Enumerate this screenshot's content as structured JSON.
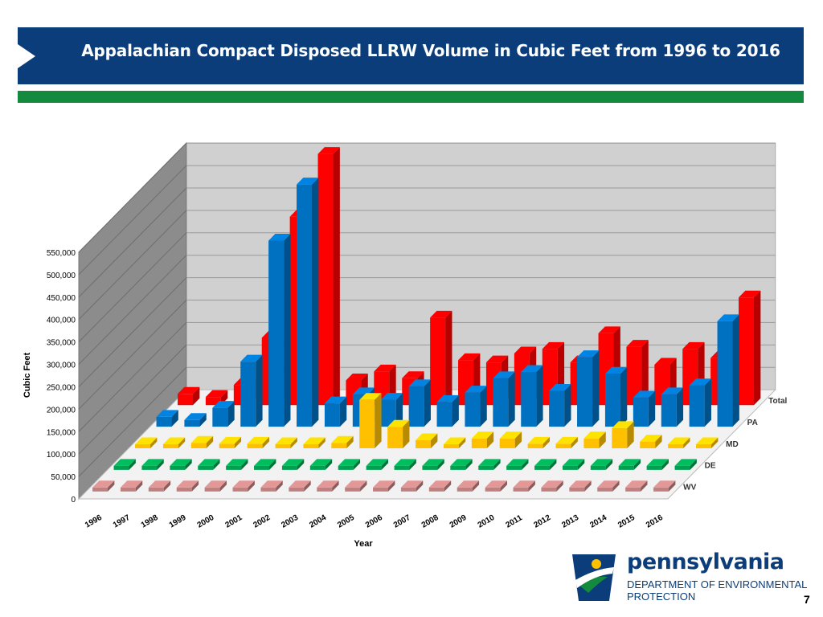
{
  "slide": {
    "title": "Appalachian Compact Disposed LLRW Volume in Cubic Feet from 1996 to 2016",
    "page_number": "7"
  },
  "logo": {
    "wordmark": "pennsylvania",
    "department_line1": "DEPARTMENT OF ENVIRONMENTAL",
    "department_line2": "PROTECTION"
  },
  "colors": {
    "header": "#0b3d7a",
    "green_bar": "#138a3e",
    "Total": "#ff0000",
    "PA": "#0070c0",
    "MD": "#ffc000",
    "DE": "#00a050",
    "WV": "#c08080"
  },
  "chart_data": {
    "type": "bar",
    "subtype": "3d-column",
    "title": "",
    "xlabel": "Year",
    "ylabel": "Cubic Feet",
    "ylim": [
      0,
      550000
    ],
    "yticks": [
      "0",
      "50,000",
      "100,000",
      "150,000",
      "200,000",
      "250,000",
      "300,000",
      "350,000",
      "400,000",
      "450,000",
      "500,000",
      "550,000"
    ],
    "categories": [
      "1996",
      "1997",
      "1998",
      "1999",
      "2000",
      "2001",
      "2002",
      "2003",
      "2004",
      "2005",
      "2006",
      "2007",
      "2008",
      "2009",
      "2010",
      "2011",
      "2012",
      "2013",
      "2014",
      "2015",
      "2016"
    ],
    "grid": true,
    "series": [
      {
        "name": "Total",
        "values": [
          25000,
          18000,
          45000,
          150000,
          420000,
          560000,
          55000,
          75000,
          60000,
          195000,
          100000,
          95000,
          115000,
          125000,
          95000,
          160000,
          130000,
          90000,
          125000,
          105000,
          240000
        ]
      },
      {
        "name": "PA",
        "values": [
          22000,
          15000,
          42000,
          145000,
          415000,
          540000,
          52000,
          72000,
          60000,
          90000,
          55000,
          76000,
          108000,
          122000,
          80000,
          155000,
          118000,
          65000,
          72000,
          92000,
          235000
        ]
      },
      {
        "name": "MD",
        "values": [
          8000,
          6000,
          12000,
          10000,
          10000,
          8000,
          5000,
          12000,
          108000,
          48000,
          18000,
          7000,
          22000,
          22000,
          10000,
          10000,
          22000,
          45000,
          15000,
          6000,
          0
        ]
      },
      {
        "name": "DE",
        "values": [
          0,
          0,
          0,
          0,
          0,
          0,
          0,
          0,
          0,
          0,
          0,
          0,
          0,
          0,
          0,
          0,
          0,
          0,
          0,
          0,
          0
        ]
      },
      {
        "name": "WV",
        "values": [
          0,
          0,
          0,
          0,
          0,
          0,
          0,
          0,
          0,
          0,
          0,
          0,
          0,
          0,
          0,
          0,
          0,
          0,
          0,
          0,
          0
        ]
      }
    ]
  }
}
